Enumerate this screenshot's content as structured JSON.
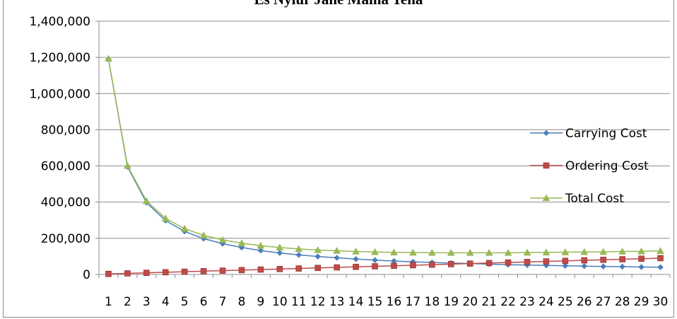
{
  "chart_data": {
    "type": "line",
    "title": "Es Nyiur Jane Mama Tena",
    "xlabel": "",
    "ylabel": "",
    "ylim": [
      0,
      1400000
    ],
    "y_ticks": [
      "0",
      "200,000",
      "400,000",
      "600,000",
      "800,000",
      "1,000,000",
      "1,200,000",
      "1,400,000"
    ],
    "categories": [
      "1",
      "2",
      "3",
      "4",
      "5",
      "6",
      "7",
      "8",
      "9",
      "10",
      "11",
      "12",
      "13",
      "14",
      "15",
      "16",
      "17",
      "18",
      "19",
      "20",
      "21",
      "22",
      "23",
      "24",
      "25",
      "26",
      "27",
      "28",
      "29",
      "30"
    ],
    "grid": true,
    "legend_position": "right",
    "series": [
      {
        "name": "Carrying Cost",
        "color": "#4a7ebb",
        "marker": "diamond",
        "values": [
          1190000,
          595000,
          397000,
          298000,
          238000,
          198000,
          170000,
          149000,
          132000,
          119000,
          108000,
          99000,
          92000,
          85000,
          79000,
          74000,
          70000,
          66000,
          63000,
          60000,
          57000,
          54000,
          52000,
          50000,
          48000,
          46000,
          44000,
          43000,
          41000,
          40000
        ]
      },
      {
        "name": "Ordering Cost",
        "color": "#be4b48",
        "marker": "square",
        "values": [
          3000,
          6000,
          9000,
          12000,
          15000,
          18000,
          21000,
          24000,
          27000,
          30000,
          33000,
          36000,
          39000,
          42000,
          45000,
          48000,
          51000,
          54000,
          57000,
          60000,
          63000,
          66000,
          69000,
          72000,
          75000,
          78000,
          81000,
          84000,
          87000,
          90000
        ]
      },
      {
        "name": "Total Cost",
        "color": "#98b954",
        "marker": "triangle",
        "values": [
          1193000,
          601000,
          406000,
          310000,
          253000,
          216000,
          191000,
          173000,
          159000,
          149000,
          141000,
          135000,
          131000,
          127000,
          124000,
          122000,
          121000,
          120000,
          120000,
          120000,
          120000,
          120000,
          121000,
          122000,
          123000,
          124000,
          125000,
          127000,
          128000,
          130000
        ]
      }
    ]
  }
}
